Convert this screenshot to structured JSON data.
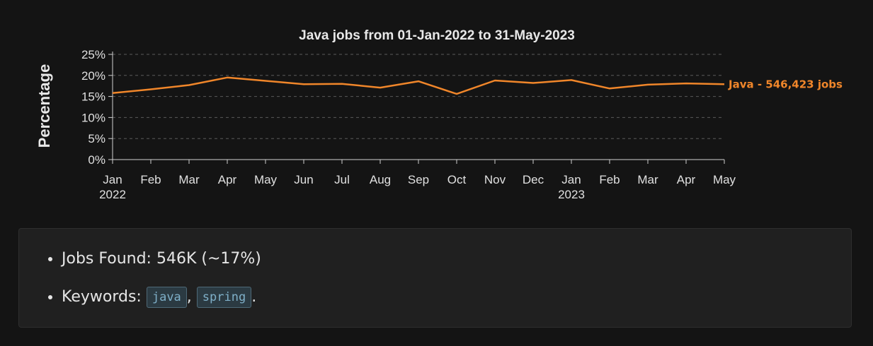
{
  "chart_data": {
    "type": "line",
    "title": "Java jobs from 01-Jan-2022 to 31-May-2023",
    "ylabel": "Percentage",
    "xlabel": "",
    "ylim": [
      0,
      25
    ],
    "yticks": [
      "0%",
      "5%",
      "10%",
      "15%",
      "20%",
      "25%"
    ],
    "x_ticks": [
      {
        "month": "Jan",
        "year": "2022"
      },
      {
        "month": "Feb",
        "year": ""
      },
      {
        "month": "Mar",
        "year": ""
      },
      {
        "month": "Apr",
        "year": ""
      },
      {
        "month": "May",
        "year": ""
      },
      {
        "month": "Jun",
        "year": ""
      },
      {
        "month": "Jul",
        "year": ""
      },
      {
        "month": "Aug",
        "year": ""
      },
      {
        "month": "Sep",
        "year": ""
      },
      {
        "month": "Oct",
        "year": ""
      },
      {
        "month": "Nov",
        "year": ""
      },
      {
        "month": "Dec",
        "year": ""
      },
      {
        "month": "Jan",
        "year": "2023"
      },
      {
        "month": "Feb",
        "year": ""
      },
      {
        "month": "Mar",
        "year": ""
      },
      {
        "month": "Apr",
        "year": ""
      },
      {
        "month": "May",
        "year": ""
      }
    ],
    "grid": true,
    "series": [
      {
        "name": "Java",
        "label": "Java - 546,423 jobs",
        "color": "#f0862a",
        "values": [
          15.8,
          16.7,
          17.7,
          19.5,
          18.7,
          17.9,
          18.0,
          17.1,
          18.6,
          15.6,
          18.8,
          18.2,
          18.9,
          16.9,
          17.8,
          18.1,
          17.9
        ]
      }
    ]
  },
  "info": {
    "jobs_found": "Jobs Found: 546K (~17%)",
    "keywords_label": "Keywords: ",
    "keywords": [
      "java",
      "spring"
    ],
    "separator": ",",
    "terminator": "."
  }
}
